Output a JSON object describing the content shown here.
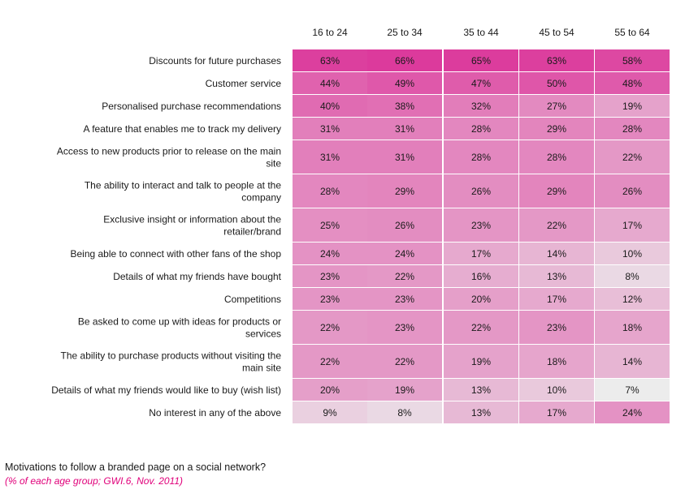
{
  "chart_data": {
    "type": "heatmap",
    "columns": [
      "16 to 24",
      "25 to 34",
      "35 to 44",
      "45 to 54",
      "55 to 64"
    ],
    "rows": [
      {
        "label": [
          "Discounts for future purchases"
        ],
        "values": [
          63,
          66,
          65,
          63,
          58
        ]
      },
      {
        "label": [
          "Customer service"
        ],
        "values": [
          44,
          49,
          47,
          50,
          48
        ]
      },
      {
        "label": [
          "Personalised purchase recommendations"
        ],
        "values": [
          40,
          38,
          32,
          27,
          19
        ]
      },
      {
        "label": [
          "A feature that enables me to track my delivery"
        ],
        "values": [
          31,
          31,
          28,
          29,
          28
        ]
      },
      {
        "label": [
          "Access to new products prior to release on the main",
          "site"
        ],
        "values": [
          31,
          31,
          28,
          28,
          22
        ]
      },
      {
        "label": [
          "The ability to interact and talk to people at the",
          "company"
        ],
        "values": [
          28,
          29,
          26,
          29,
          26
        ]
      },
      {
        "label": [
          "Exclusive insight or information about the",
          "retailer/brand"
        ],
        "values": [
          25,
          26,
          23,
          22,
          17
        ]
      },
      {
        "label": [
          "Being able to connect with other fans of the shop"
        ],
        "values": [
          24,
          24,
          17,
          14,
          10
        ]
      },
      {
        "label": [
          "Details of what my friends have bought"
        ],
        "values": [
          23,
          22,
          16,
          13,
          8
        ]
      },
      {
        "label": [
          "Competitions"
        ],
        "values": [
          23,
          23,
          20,
          17,
          12
        ]
      },
      {
        "label": [
          "Be asked to come up with ideas for products or",
          "services"
        ],
        "values": [
          22,
          23,
          22,
          23,
          18
        ]
      },
      {
        "label": [
          "The ability to purchase products without visiting the",
          "main site"
        ],
        "values": [
          22,
          22,
          19,
          18,
          14
        ]
      },
      {
        "label": [
          "Details of what my friends would like to buy (wish list)"
        ],
        "values": [
          20,
          19,
          13,
          10,
          7
        ]
      },
      {
        "label": [
          "No interest in any of the above"
        ],
        "values": [
          9,
          8,
          13,
          17,
          24
        ]
      }
    ],
    "value_suffix": "%",
    "color_low": "#ececec",
    "color_high": "#dc3a9c"
  },
  "caption": {
    "title": "Motivations to follow a branded page on a social network?",
    "subtitle": "(% of each age group; GWI.6, Nov. 2011)"
  }
}
